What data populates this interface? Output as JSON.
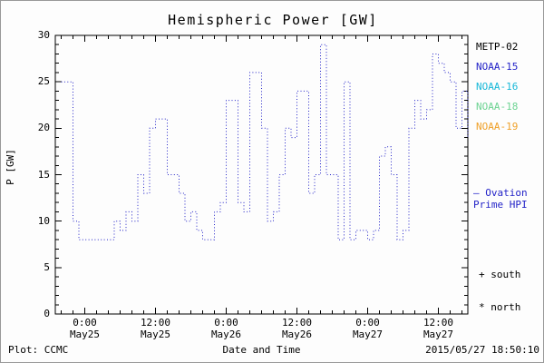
{
  "title": "Hemispheric Power [GW]",
  "legend": {
    "satellites": [
      {
        "label": "METP-02",
        "color": "#000000"
      },
      {
        "label": "NOAA-15",
        "color": "#2323c8"
      },
      {
        "label": "NOAA-16",
        "color": "#17b8d8"
      },
      {
        "label": "NOAA-18",
        "color": "#6cd392"
      },
      {
        "label": "NOAA-19",
        "color": "#efa028"
      }
    ],
    "ovation_lines": [
      "— Ovation",
      "Prime HPI"
    ],
    "ovation_color": "#2323c8",
    "south_label": "+ south",
    "north_label": "* north"
  },
  "footer": {
    "plot_credit": "Plot: CCMC",
    "timestamp": "2015/05/27 18:50:10"
  },
  "chart_data": {
    "type": "line",
    "style": "dotted-step",
    "title": "Hemispheric Power [GW]",
    "xlabel": "Date and Time",
    "ylabel": "P [GW]",
    "ylim": [
      0,
      30
    ],
    "y_ticks": [
      0,
      5,
      10,
      15,
      20,
      25,
      30
    ],
    "x_range_hours": [
      -5,
      65
    ],
    "x_unit": "hours from May25 00:00",
    "x_ticks": [
      {
        "hour": 0,
        "time": "0:00",
        "date": "May25"
      },
      {
        "hour": 12,
        "time": "12:00",
        "date": "May25"
      },
      {
        "hour": 24,
        "time": "0:00",
        "date": "May26"
      },
      {
        "hour": 36,
        "time": "12:00",
        "date": "May26"
      },
      {
        "hour": 48,
        "time": "0:00",
        "date": "May27"
      },
      {
        "hour": 60,
        "time": "12:00",
        "date": "May27"
      }
    ],
    "legend_position": "right",
    "grid": false,
    "series": [
      {
        "name": "Ovation Prime HPI",
        "color": "#2323c8",
        "x_hours": [
          -4,
          -3,
          -2,
          -1,
          0,
          1,
          2,
          3,
          4,
          5,
          6,
          7,
          8,
          9,
          10,
          11,
          12,
          13,
          14,
          15,
          16,
          17,
          18,
          19,
          20,
          21,
          22,
          23,
          24,
          25,
          26,
          27,
          28,
          29,
          30,
          31,
          32,
          33,
          34,
          35,
          36,
          37,
          38,
          39,
          40,
          41,
          42,
          43,
          44,
          45,
          46,
          47,
          48,
          49,
          50,
          51,
          52,
          53,
          54,
          55,
          56,
          57,
          58,
          59,
          60,
          61,
          62,
          63,
          64,
          65
        ],
        "values": [
          25,
          25,
          10,
          8,
          8,
          8,
          8,
          8,
          8,
          10,
          9,
          11,
          10,
          15,
          13,
          20,
          21,
          21,
          15,
          15,
          13,
          10,
          11,
          9,
          8,
          8,
          11,
          12,
          23,
          23,
          12,
          11,
          26,
          26,
          20,
          10,
          11,
          15,
          20,
          19,
          24,
          24,
          13,
          15,
          29,
          15,
          15,
          8,
          25,
          8,
          9,
          9,
          8,
          9,
          17,
          18,
          15,
          8,
          9,
          20,
          23,
          21,
          22,
          28,
          27,
          26,
          25,
          20,
          24,
          19
        ]
      }
    ]
  }
}
